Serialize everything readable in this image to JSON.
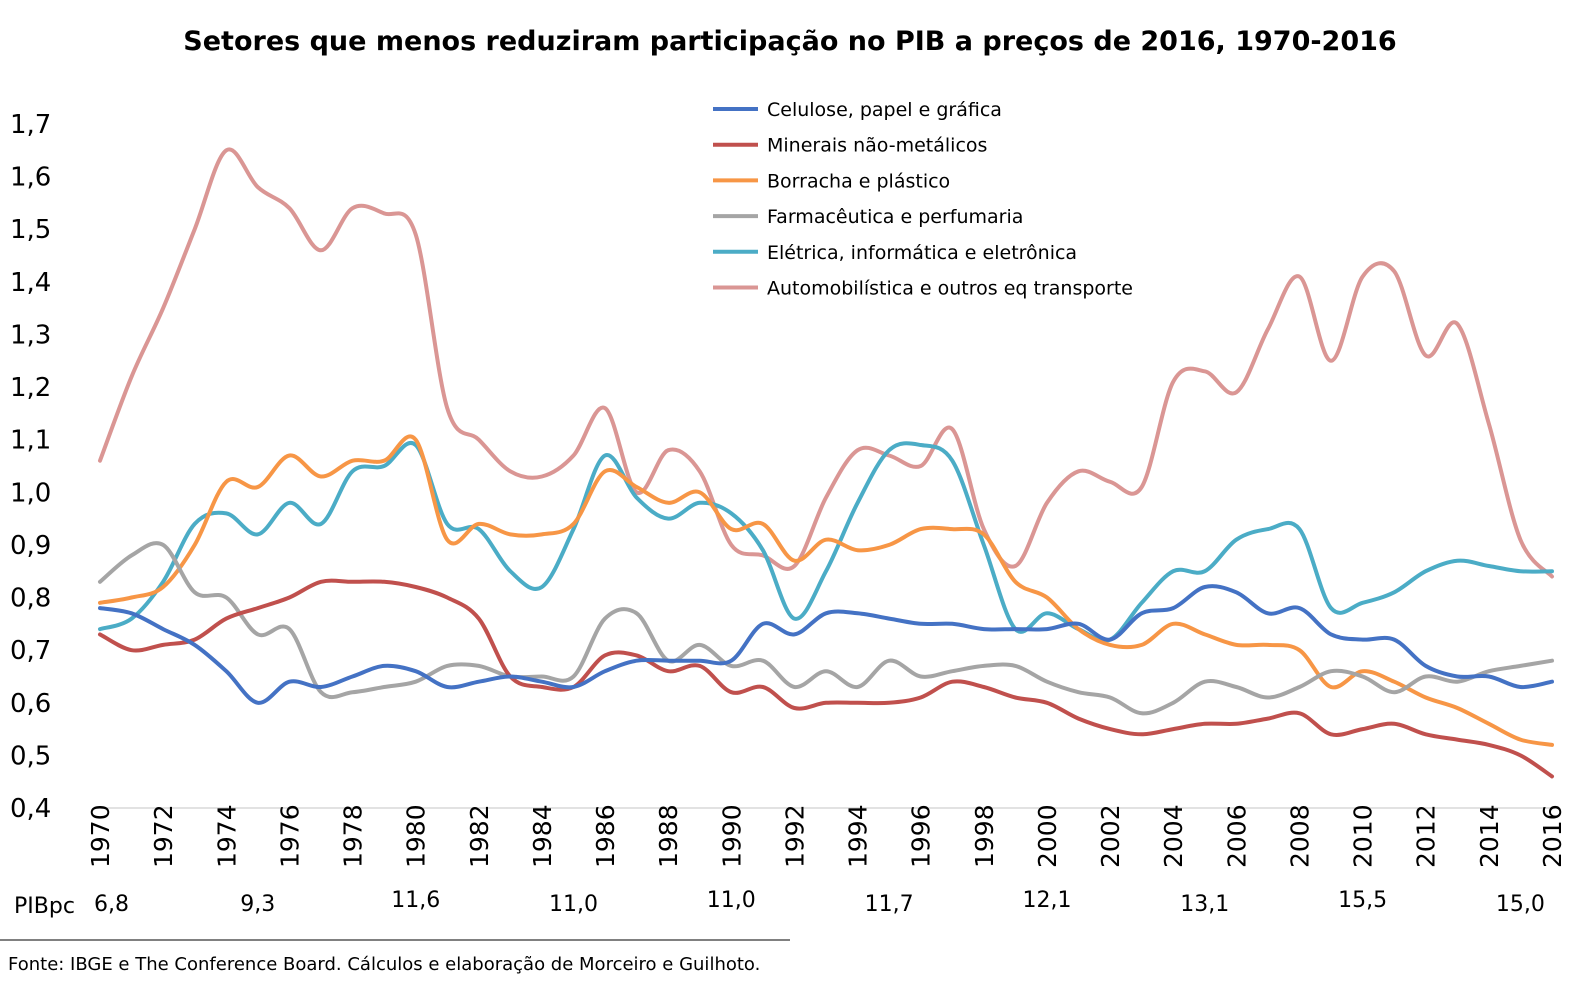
{
  "chart_data": {
    "type": "line",
    "title": "Setores que menos reduziram participação no PIB a preços de 2016, 1970-2016",
    "xlabel": "",
    "ylabel": "",
    "ylim": [
      0.4,
      1.7
    ],
    "yticks": [
      "0,4",
      "0,5",
      "0,6",
      "0,7",
      "0,8",
      "0,9",
      "1,0",
      "1,1",
      "1,2",
      "1,3",
      "1,4",
      "1,5",
      "1,6",
      "1,7"
    ],
    "x": [
      1970,
      1971,
      1972,
      1973,
      1974,
      1975,
      1976,
      1977,
      1978,
      1979,
      1980,
      1981,
      1982,
      1983,
      1984,
      1985,
      1986,
      1987,
      1988,
      1989,
      1990,
      1991,
      1992,
      1993,
      1994,
      1995,
      1996,
      1997,
      1998,
      1999,
      2000,
      2001,
      2002,
      2003,
      2004,
      2005,
      2006,
      2007,
      2008,
      2009,
      2010,
      2011,
      2012,
      2013,
      2014,
      2015,
      2016
    ],
    "xtick_labels": [
      "1970",
      "1972",
      "1974",
      "1976",
      "1978",
      "1980",
      "1982",
      "1984",
      "1986",
      "1988",
      "1990",
      "1992",
      "1994",
      "1996",
      "1998",
      "2000",
      "2002",
      "2004",
      "2006",
      "2008",
      "2010",
      "2012",
      "2014",
      "2016"
    ],
    "grid": false,
    "legend_position": "top-center",
    "series": [
      {
        "name": "Celulose, papel e gráfica",
        "color": "#4472C4",
        "values": [
          0.78,
          0.77,
          0.74,
          0.71,
          0.66,
          0.6,
          0.64,
          0.63,
          0.65,
          0.67,
          0.66,
          0.63,
          0.64,
          0.65,
          0.64,
          0.63,
          0.66,
          0.68,
          0.68,
          0.68,
          0.68,
          0.75,
          0.73,
          0.77,
          0.77,
          0.76,
          0.75,
          0.75,
          0.74,
          0.74,
          0.74,
          0.75,
          0.72,
          0.77,
          0.78,
          0.82,
          0.81,
          0.77,
          0.78,
          0.73,
          0.72,
          0.72,
          0.67,
          0.65,
          0.65,
          0.63,
          0.64
        ]
      },
      {
        "name": "Minerais não-metálicos",
        "color": "#C0504D",
        "values": [
          0.73,
          0.7,
          0.71,
          0.72,
          0.76,
          0.78,
          0.8,
          0.83,
          0.83,
          0.83,
          0.82,
          0.8,
          0.76,
          0.65,
          0.63,
          0.63,
          0.69,
          0.69,
          0.66,
          0.67,
          0.62,
          0.63,
          0.59,
          0.6,
          0.6,
          0.6,
          0.61,
          0.64,
          0.63,
          0.61,
          0.6,
          0.57,
          0.55,
          0.54,
          0.55,
          0.56,
          0.56,
          0.57,
          0.58,
          0.54,
          0.55,
          0.56,
          0.54,
          0.53,
          0.52,
          0.5,
          0.46
        ]
      },
      {
        "name": "Borracha e plástico",
        "color": "#F79646",
        "values": [
          0.79,
          0.8,
          0.82,
          0.9,
          1.02,
          1.01,
          1.07,
          1.03,
          1.06,
          1.06,
          1.1,
          0.91,
          0.94,
          0.92,
          0.92,
          0.94,
          1.04,
          1.01,
          0.98,
          1.0,
          0.93,
          0.94,
          0.87,
          0.91,
          0.89,
          0.9,
          0.93,
          0.93,
          0.92,
          0.83,
          0.8,
          0.74,
          0.71,
          0.71,
          0.75,
          0.73,
          0.71,
          0.71,
          0.7,
          0.63,
          0.66,
          0.64,
          0.61,
          0.59,
          0.56,
          0.53,
          0.52
        ]
      },
      {
        "name": "Farmacêutica e perfumaria",
        "color": "#A5A5A5",
        "values": [
          0.83,
          0.88,
          0.9,
          0.81,
          0.8,
          0.73,
          0.74,
          0.62,
          0.62,
          0.63,
          0.64,
          0.67,
          0.67,
          0.65,
          0.65,
          0.65,
          0.76,
          0.77,
          0.68,
          0.71,
          0.67,
          0.68,
          0.63,
          0.66,
          0.63,
          0.68,
          0.65,
          0.66,
          0.67,
          0.67,
          0.64,
          0.62,
          0.61,
          0.58,
          0.6,
          0.64,
          0.63,
          0.61,
          0.63,
          0.66,
          0.65,
          0.62,
          0.65,
          0.64,
          0.66,
          0.67,
          0.68
        ]
      },
      {
        "name": "Elétrica, informática e eletrônica",
        "color": "#4BACC6",
        "values": [
          0.74,
          0.76,
          0.83,
          0.94,
          0.96,
          0.92,
          0.98,
          0.94,
          1.04,
          1.05,
          1.09,
          0.94,
          0.93,
          0.85,
          0.82,
          0.93,
          1.07,
          0.99,
          0.95,
          0.98,
          0.96,
          0.89,
          0.76,
          0.85,
          0.98,
          1.08,
          1.09,
          1.06,
          0.9,
          0.74,
          0.77,
          0.74,
          0.72,
          0.79,
          0.85,
          0.85,
          0.91,
          0.93,
          0.93,
          0.78,
          0.79,
          0.81,
          0.85,
          0.87,
          0.86,
          0.85,
          0.85
        ]
      },
      {
        "name": "Automobilística e outros eq transporte",
        "color": "#DA9694",
        "values": [
          1.06,
          1.22,
          1.35,
          1.5,
          1.65,
          1.58,
          1.54,
          1.46,
          1.54,
          1.53,
          1.49,
          1.16,
          1.1,
          1.04,
          1.03,
          1.07,
          1.16,
          1.0,
          1.08,
          1.04,
          0.9,
          0.88,
          0.86,
          0.99,
          1.08,
          1.07,
          1.05,
          1.12,
          0.93,
          0.86,
          0.98,
          1.04,
          1.02,
          1.01,
          1.21,
          1.23,
          1.19,
          1.31,
          1.41,
          1.25,
          1.41,
          1.42,
          1.26,
          1.32,
          1.13,
          0.91,
          0.84
        ]
      }
    ]
  },
  "pibpc": {
    "label": "PIBpc",
    "values": [
      {
        "year": 1970,
        "text": "6,8"
      },
      {
        "year": 1975,
        "text": "9,3"
      },
      {
        "year": 1980,
        "text": "11,6"
      },
      {
        "year": 1985,
        "text": "11,0"
      },
      {
        "year": 1990,
        "text": "11,0"
      },
      {
        "year": 1995,
        "text": "11,7"
      },
      {
        "year": 2000,
        "text": "12,1"
      },
      {
        "year": 2005,
        "text": "13,1"
      },
      {
        "year": 2010,
        "text": "15,5"
      },
      {
        "year": 2015,
        "text": "15,0"
      }
    ]
  },
  "source": "Fonte: IBGE e The Conference Board. Cálculos e elaboração de Morceiro e Guilhoto."
}
